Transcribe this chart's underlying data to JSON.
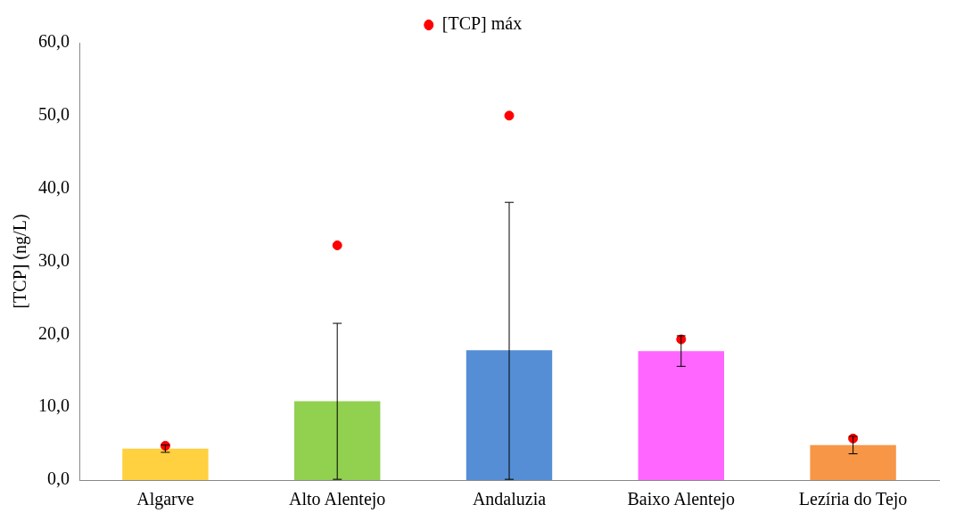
{
  "chart_data": {
    "type": "bar",
    "ylabel": "[TCP] (ng/L)",
    "categories": [
      "Algarve",
      "Alto Alentejo",
      "Andaluzia",
      "Baixo Alentejo",
      "Lezíria do Tejo"
    ],
    "ylim": [
      0,
      60
    ],
    "yticks": [
      {
        "value": 0,
        "label": "0,0"
      },
      {
        "value": 10,
        "label": "10,0"
      },
      {
        "value": 20,
        "label": "20,0"
      },
      {
        "value": 30,
        "label": "30,0"
      },
      {
        "value": 40,
        "label": "40,0"
      },
      {
        "value": 50,
        "label": "50,0"
      },
      {
        "value": 60,
        "label": "60,0"
      }
    ],
    "grid": false,
    "legend": "top",
    "series": [
      {
        "colors": [
          "#ffd040",
          "#92d050",
          "#558ed5",
          "#ff66ff",
          "#f79646"
        ],
        "values": [
          4.3,
          10.8,
          17.8,
          17.7,
          4.8
        ],
        "errors": [
          0.5,
          10.7,
          [
            0.1,
            38.1
          ],
          2.1,
          1.2
        ]
      },
      {
        "type": "scatter",
        "name": "[TCP] máx",
        "color": "#ff0000",
        "marker": "circle",
        "x": [
          "Algarve",
          "Alto Alentejo",
          "Andaluzia",
          "Baixo Alentejo",
          "Lezíria do Tejo"
        ],
        "values": [
          4.7,
          32.2,
          50.0,
          19.3,
          5.7
        ]
      }
    ]
  }
}
